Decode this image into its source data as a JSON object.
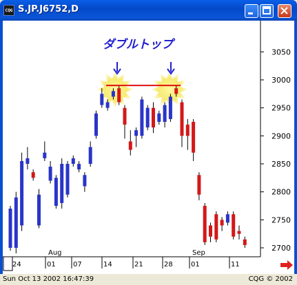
{
  "window": {
    "title": "S.JP.J6752,D",
    "app_icon": "CQG",
    "controls": [
      "minimize-icon",
      "maximize-icon",
      "close-icon"
    ]
  },
  "chart": {
    "annotation": "ダブルトップ",
    "y_ticks": [
      "3050",
      "3000",
      "2950",
      "2900",
      "2850",
      "2800",
      "2750",
      "2700"
    ],
    "x_ticks": [
      "24",
      "01",
      "07",
      "14",
      "21",
      "28",
      "01",
      "11"
    ],
    "month_labels": [
      "Aug",
      "Sep"
    ],
    "colors": {
      "up": "#2a35c8",
      "down": "#d41818",
      "neckline": "#e01010",
      "arrow": "#2020d0",
      "axis": "#000000"
    }
  },
  "chart_data": {
    "type": "candlestick",
    "ylim": [
      2685,
      3100
    ],
    "candles": [
      {
        "o": 2700,
        "c": 2770,
        "h": 2775,
        "l": 2695,
        "dir": "up"
      },
      {
        "o": 2700,
        "c": 2790,
        "h": 2800,
        "l": 2690,
        "dir": "up"
      },
      {
        "o": 2740,
        "c": 2855,
        "h": 2870,
        "l": 2730,
        "dir": "up"
      },
      {
        "o": 2850,
        "c": 2860,
        "h": 2880,
        "l": 2840,
        "dir": "up"
      },
      {
        "o": 2835,
        "c": 2825,
        "h": 2840,
        "l": 2820,
        "dir": "down"
      },
      {
        "o": 2740,
        "c": 2795,
        "h": 2805,
        "l": 2735,
        "dir": "up"
      },
      {
        "o": 2860,
        "c": 2870,
        "h": 2890,
        "l": 2855,
        "dir": "up"
      },
      {
        "o": 2820,
        "c": 2845,
        "h": 2855,
        "l": 2815,
        "dir": "up"
      },
      {
        "o": 2775,
        "c": 2825,
        "h": 2830,
        "l": 2770,
        "dir": "up"
      },
      {
        "o": 2780,
        "c": 2850,
        "h": 2860,
        "l": 2770,
        "dir": "up"
      },
      {
        "o": 2795,
        "c": 2850,
        "h": 2855,
        "l": 2790,
        "dir": "up"
      },
      {
        "o": 2850,
        "c": 2860,
        "h": 2865,
        "l": 2845,
        "dir": "up"
      },
      {
        "o": 2840,
        "c": 2850,
        "h": 2855,
        "l": 2835,
        "dir": "up"
      },
      {
        "o": 2810,
        "c": 2830,
        "h": 2835,
        "l": 2800,
        "dir": "up"
      },
      {
        "o": 2850,
        "c": 2880,
        "h": 2890,
        "l": 2845,
        "dir": "up"
      },
      {
        "o": 2900,
        "c": 2940,
        "h": 2945,
        "l": 2895,
        "dir": "up"
      },
      {
        "o": 2955,
        "c": 2975,
        "h": 2985,
        "l": 2950,
        "dir": "up"
      },
      {
        "o": 2950,
        "c": 2960,
        "h": 2965,
        "l": 2945,
        "dir": "up"
      },
      {
        "o": 2970,
        "c": 2980,
        "h": 2985,
        "l": 2965,
        "dir": "up"
      },
      {
        "o": 2985,
        "c": 2960,
        "h": 2990,
        "l": 2955,
        "dir": "down"
      },
      {
        "o": 2950,
        "c": 2920,
        "h": 2955,
        "l": 2895,
        "dir": "down"
      },
      {
        "o": 2890,
        "c": 2875,
        "h": 2910,
        "l": 2865,
        "dir": "down"
      },
      {
        "o": 2900,
        "c": 2910,
        "h": 2915,
        "l": 2880,
        "dir": "up"
      },
      {
        "o": 2900,
        "c": 2965,
        "h": 2970,
        "l": 2895,
        "dir": "up"
      },
      {
        "o": 2915,
        "c": 2950,
        "h": 2955,
        "l": 2910,
        "dir": "up"
      },
      {
        "o": 2950,
        "c": 2915,
        "h": 2960,
        "l": 2905,
        "dir": "down"
      },
      {
        "o": 2925,
        "c": 2940,
        "h": 2945,
        "l": 2920,
        "dir": "up"
      },
      {
        "o": 2925,
        "c": 2955,
        "h": 2960,
        "l": 2915,
        "dir": "up"
      },
      {
        "o": 2930,
        "c": 2970,
        "h": 2975,
        "l": 2925,
        "dir": "up"
      },
      {
        "o": 2985,
        "c": 2975,
        "h": 2990,
        "l": 2970,
        "dir": "down"
      },
      {
        "o": 2960,
        "c": 2900,
        "h": 2965,
        "l": 2880,
        "dir": "down"
      },
      {
        "o": 2920,
        "c": 2900,
        "h": 2930,
        "l": 2875,
        "dir": "down"
      },
      {
        "o": 2925,
        "c": 2870,
        "h": 2930,
        "l": 2855,
        "dir": "down"
      },
      {
        "o": 2830,
        "c": 2795,
        "h": 2835,
        "l": 2785,
        "dir": "down"
      },
      {
        "o": 2775,
        "c": 2710,
        "h": 2780,
        "l": 2705,
        "dir": "down"
      },
      {
        "o": 2740,
        "c": 2720,
        "h": 2745,
        "l": 2710,
        "dir": "down"
      },
      {
        "o": 2760,
        "c": 2715,
        "h": 2765,
        "l": 2710,
        "dir": "down"
      },
      {
        "o": 2750,
        "c": 2740,
        "h": 2755,
        "l": 2730,
        "dir": "down"
      },
      {
        "o": 2745,
        "c": 2760,
        "h": 2765,
        "l": 2740,
        "dir": "up"
      },
      {
        "o": 2760,
        "c": 2720,
        "h": 2765,
        "l": 2715,
        "dir": "down"
      },
      {
        "o": 2730,
        "c": 2725,
        "h": 2740,
        "l": 2715,
        "dir": "down"
      },
      {
        "o": 2715,
        "c": 2705,
        "h": 2720,
        "l": 2700,
        "dir": "down"
      }
    ],
    "neckline": 2990
  },
  "status": {
    "datetime": "Sun Oct 13 2002 16:47:39",
    "copyright": "CQG © 2002"
  }
}
